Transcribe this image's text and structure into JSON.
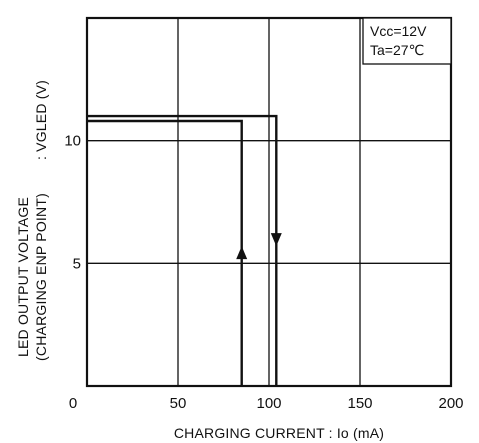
{
  "chart_data": {
    "type": "line",
    "title": "",
    "xlabel": "CHARGING CURRENT : Io (mA)",
    "ylabel": {
      "line1": "LED OUTPUT VOLTAGE",
      "line2": "(CHARGING ENP POINT)",
      "symbol": ": VGLED (V)"
    },
    "xlim": [
      0,
      200
    ],
    "ylim": [
      0,
      15
    ],
    "x_ticks": [
      {
        "value": 0,
        "label": "0"
      },
      {
        "value": 50,
        "label": "50"
      },
      {
        "value": 100,
        "label": "100"
      },
      {
        "value": 150,
        "label": "150"
      },
      {
        "value": 200,
        "label": "200"
      }
    ],
    "y_ticks": [
      {
        "value": 0,
        "label": ""
      },
      {
        "value": 5,
        "label": "5"
      },
      {
        "value": 10,
        "label": "10"
      }
    ],
    "grid": true,
    "conditions": [
      "Vcc=12V",
      "Ta=27℃"
    ],
    "legend_placement": "top-right",
    "series": [
      {
        "points": [
          [
            0,
            11.0
          ],
          [
            104,
            11.0
          ],
          [
            104,
            0
          ]
        ],
        "arrow": {
          "at": [
            104,
            5.7
          ],
          "direction": "down"
        }
      },
      {
        "points": [
          [
            0,
            10.8
          ],
          [
            85,
            10.8
          ],
          [
            85,
            0
          ]
        ],
        "arrow": {
          "at": [
            85,
            5.7
          ],
          "direction": "up"
        }
      }
    ]
  }
}
